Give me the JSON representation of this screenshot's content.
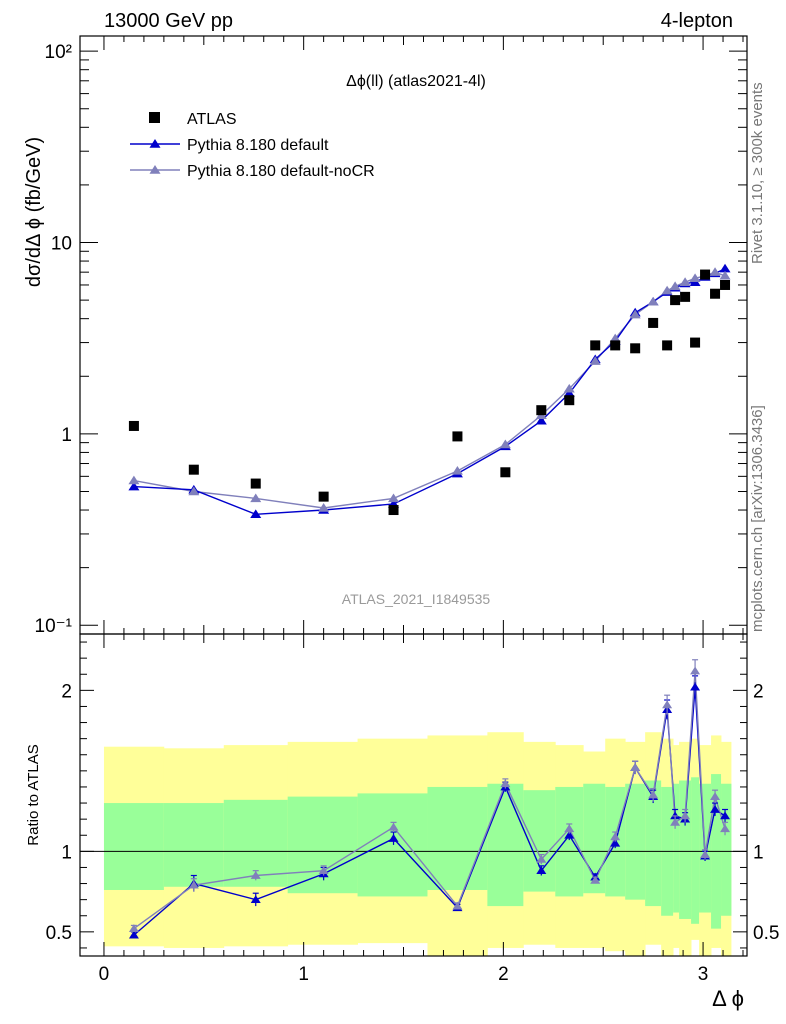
{
  "header": {
    "left": "13000 GeV pp",
    "right": "4-lepton"
  },
  "side_labels": {
    "rivet": "Rivet 3.1.10, ≥ 300k events",
    "mcplots": "mcplots.cern.ch [arXiv:1306.3436]"
  },
  "chart_data": [
    {
      "type": "scatter",
      "title": "Δϕ(ll) (atlas2021-4l)",
      "xlabel": "Δ ϕ",
      "ylabel": "dσ/dΔ ϕ (fb/GeV)",
      "y_scale": "log",
      "ylim": [
        0.09,
        120
      ],
      "xlim": [
        -0.12,
        3.22
      ],
      "y_ticks": [
        {
          "value": 0.1,
          "label": "10⁻¹"
        },
        {
          "value": 1,
          "label": "1"
        },
        {
          "value": 10,
          "label": "10"
        },
        {
          "value": 100,
          "label": "10²"
        }
      ],
      "legend_position": "top-left",
      "watermark": "ATLAS_2021_I1849535",
      "series": [
        {
          "name": "ATLAS",
          "style": "black squares",
          "color": "#000000",
          "x": [
            0.15,
            0.45,
            0.76,
            1.1,
            1.45,
            1.77,
            2.01,
            2.19,
            2.33,
            2.46,
            2.56,
            2.66,
            2.75,
            2.82,
            2.86,
            2.91,
            2.96,
            3.01,
            3.06,
            3.11
          ],
          "y": [
            1.1,
            0.65,
            0.55,
            0.47,
            0.4,
            0.97,
            0.63,
            1.33,
            1.5,
            2.9,
            2.9,
            2.8,
            3.8,
            2.9,
            5.0,
            5.2,
            3.0,
            6.8,
            5.4,
            6.0
          ]
        },
        {
          "name": "Pythia 8.180 default",
          "style": "line with triangles",
          "color": "#0000cc",
          "x": [
            0.15,
            0.45,
            0.76,
            1.1,
            1.45,
            1.77,
            2.01,
            2.19,
            2.33,
            2.46,
            2.56,
            2.66,
            2.75,
            2.82,
            2.86,
            2.91,
            2.96,
            3.01,
            3.06,
            3.11
          ],
          "y": [
            0.53,
            0.51,
            0.38,
            0.4,
            0.43,
            0.62,
            0.86,
            1.17,
            1.63,
            2.45,
            3.05,
            4.3,
            4.9,
            5.5,
            5.8,
            6.1,
            6.2,
            6.6,
            6.9,
            7.3
          ]
        },
        {
          "name": "Pythia 8.180 default-noCR",
          "style": "line with triangles",
          "color": "#8080bb",
          "x": [
            0.15,
            0.45,
            0.76,
            1.1,
            1.45,
            1.77,
            2.01,
            2.19,
            2.33,
            2.46,
            2.56,
            2.66,
            2.75,
            2.82,
            2.86,
            2.91,
            2.96,
            3.01,
            3.06,
            3.11
          ],
          "y": [
            0.57,
            0.5,
            0.46,
            0.41,
            0.46,
            0.64,
            0.88,
            1.25,
            1.72,
            2.4,
            3.15,
            4.2,
            4.9,
            5.6,
            5.9,
            6.2,
            6.5,
            6.7,
            7.0,
            6.7
          ]
        }
      ]
    },
    {
      "type": "line",
      "ylabel": "Ratio to ATLAS",
      "xlabel": "Δ ϕ",
      "ylim": [
        0.35,
        2.35
      ],
      "xlim": [
        -0.12,
        3.22
      ],
      "x_ticks": [
        0,
        1,
        2,
        3
      ],
      "y_ticks": [
        0.5,
        1,
        2
      ],
      "bands": {
        "edges": [
          0.0,
          0.3,
          0.6,
          0.92,
          1.27,
          1.62,
          1.92,
          2.1,
          2.26,
          2.4,
          2.51,
          2.61,
          2.71,
          2.79,
          2.85,
          2.88,
          2.94,
          2.98,
          3.04,
          3.09,
          3.14
        ],
        "stat_color": "#99ff99",
        "total_color": "#ffff99",
        "stat_low": [
          0.76,
          0.78,
          0.78,
          0.74,
          0.72,
          0.76,
          0.66,
          0.75,
          0.72,
          0.74,
          0.72,
          0.7,
          0.66,
          0.6,
          0.62,
          0.58,
          0.55,
          0.62,
          0.52,
          0.6
        ],
        "stat_high": [
          1.3,
          1.3,
          1.32,
          1.34,
          1.36,
          1.4,
          1.42,
          1.38,
          1.4,
          1.42,
          1.4,
          1.42,
          1.44,
          1.4,
          1.42,
          1.44,
          1.46,
          1.42,
          1.48,
          1.42
        ],
        "total_low": [
          0.41,
          0.4,
          0.41,
          0.42,
          0.43,
          0.35,
          0.4,
          0.42,
          0.4,
          0.4,
          0.38,
          0.35,
          0.42,
          0.35,
          0.4,
          0.35,
          0.45,
          0.35,
          0.4,
          0.35
        ],
        "total_high": [
          1.65,
          1.64,
          1.66,
          1.68,
          1.7,
          1.72,
          1.74,
          1.68,
          1.66,
          1.62,
          1.7,
          1.68,
          1.74,
          1.7,
          1.66,
          1.68,
          1.7,
          1.66,
          1.72,
          1.68
        ]
      },
      "series": [
        {
          "name": "Pythia 8.180 default",
          "color": "#0000cc",
          "x": [
            0.15,
            0.45,
            0.76,
            1.1,
            1.45,
            1.77,
            2.01,
            2.19,
            2.33,
            2.46,
            2.56,
            2.66,
            2.75,
            2.82,
            2.86,
            2.91,
            2.96,
            3.01,
            3.06,
            3.11
          ],
          "y": [
            0.48,
            0.8,
            0.7,
            0.86,
            1.08,
            0.65,
            1.4,
            0.88,
            1.1,
            0.84,
            1.05,
            1.52,
            1.34,
            1.88,
            1.22,
            1.2,
            2.02,
            0.97,
            1.26,
            1.22
          ],
          "err": [
            0.02,
            0.05,
            0.04,
            0.04,
            0.04,
            0.02,
            0.03,
            0.03,
            0.03,
            0.02,
            0.03,
            0.04,
            0.04,
            0.06,
            0.04,
            0.04,
            0.07,
            0.03,
            0.04,
            0.04
          ]
        },
        {
          "name": "Pythia 8.180 default-noCR",
          "color": "#8080bb",
          "x": [
            0.15,
            0.45,
            0.76,
            1.1,
            1.45,
            1.77,
            2.01,
            2.19,
            2.33,
            2.46,
            2.56,
            2.66,
            2.75,
            2.82,
            2.86,
            2.91,
            2.96,
            3.01,
            3.06,
            3.11
          ],
          "y": [
            0.52,
            0.79,
            0.85,
            0.88,
            1.15,
            0.66,
            1.42,
            0.95,
            1.14,
            0.82,
            1.09,
            1.52,
            1.35,
            1.91,
            1.18,
            1.22,
            2.12,
            0.98,
            1.34,
            1.14
          ],
          "err": [
            0.02,
            0.04,
            0.03,
            0.03,
            0.03,
            0.02,
            0.03,
            0.03,
            0.03,
            0.02,
            0.03,
            0.04,
            0.04,
            0.06,
            0.04,
            0.04,
            0.07,
            0.03,
            0.04,
            0.04
          ]
        }
      ]
    }
  ]
}
